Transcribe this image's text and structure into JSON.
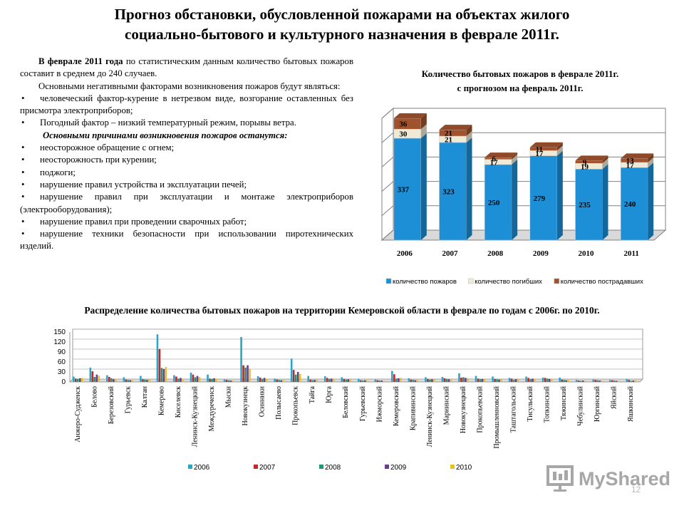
{
  "title": {
    "line1": "Прогноз обстановки, обусловленной пожарами на объектах жилого",
    "line2": "социально-бытового и культурного назначения в феврале 2011г."
  },
  "text": {
    "p1_bold": "В феврале 2011 года",
    "p1_rest": " по статистическим данным количество бытовых пожаров составит в среднем до 240 случаев.",
    "p2": "Основными негативными факторами возникновения пожаров будут являться:",
    "bullet_mark": "•",
    "factors": [
      "человеческий фактор-курение в нетрезвом виде, возгорание оставленных без присмотра электроприборов;",
      "Погодный фактор – низкий температурный режим, порывы ветра."
    ],
    "causes_heading": "Основными причинами возникновения пожаров останутся:",
    "causes": [
      "неосторожное обращение с огнем;",
      "неосторожность при курении;",
      "поджоги;",
      "нарушение правил устройства и эксплуатации печей;",
      "нарушение правил при эксплуатации и монтаже электроприборов (электрооборудования);",
      "нарушение правил при проведении сварочных работ;",
      "нарушение техники безопасности при использовании пиротехнических изделий."
    ]
  },
  "chart_data": [
    {
      "type": "bar",
      "stacked": true,
      "title_line1": "Количество бытовых пожаров в феврале 2011г.",
      "title_line2": "с прогнозом на февраль 2011г.",
      "categories": [
        "2006",
        "2007",
        "2008",
        "2009",
        "2010",
        "2011"
      ],
      "series": [
        {
          "name": "количество пожаров",
          "values": [
            337,
            323,
            250,
            279,
            235,
            240
          ],
          "color": "#1c8fd6"
        },
        {
          "name": "количество погибших",
          "values": [
            30,
            21,
            17,
            17,
            19,
            17
          ],
          "color": "#efe9d5"
        },
        {
          "name": "количество пострадавших",
          "values": [
            36,
            21,
            6,
            11,
            9,
            13
          ],
          "color": "#a0522d"
        }
      ],
      "legend_position": "bottom",
      "grid": true
    },
    {
      "type": "bar",
      "title": "Распределение количества бытовых пожаров на территории Кемеровской области в феврале по годам с 2006г. по 2010г.",
      "ylim": [
        0,
        150
      ],
      "yticks": [
        0,
        30,
        60,
        90,
        120,
        150
      ],
      "categories": [
        "Анжеро-Судженск",
        "Белово",
        "Березовский",
        "Гурьевск",
        "Калтан",
        "Кемерово",
        "Киселевск",
        "Ленинск-Кузнецкий",
        "Междуреченск",
        "Мыски",
        "Новокузнецк",
        "Осинники",
        "Полысаево",
        "Прокопьевск",
        "Тайга",
        "Юрга",
        "Беловский",
        "Гурьевский",
        "Ижморский",
        "Кемеровский",
        "Крапивинский",
        "Ленинск-Кузнецкий",
        "Мариинский",
        "Новокузнецкий",
        "Прокопьевский",
        "Промышленновский",
        "Таштагольский",
        "Тисульский",
        "Топкинский",
        "Тяжинский",
        "Чебулинский",
        "Юргинский",
        "Яйский",
        "Яшкинский"
      ],
      "series": [
        {
          "name": "2006",
          "color": "#2aa6c8",
          "values": [
            16,
            43,
            20,
            14,
            18,
            143,
            20,
            28,
            22,
            7,
            135,
            17,
            10,
            70,
            18,
            17,
            14,
            9,
            7,
            33,
            11,
            14,
            15,
            26,
            18,
            16,
            12,
            16,
            13,
            13,
            6,
            7,
            6,
            9
          ]
        },
        {
          "name": "2007",
          "color": "#c0282a",
          "values": [
            10,
            32,
            15,
            7,
            8,
            99,
            16,
            22,
            10,
            6,
            50,
            13,
            7,
            36,
            7,
            12,
            9,
            5,
            5,
            23,
            7,
            9,
            11,
            13,
            10,
            9,
            10,
            12,
            12,
            7,
            4,
            6,
            5,
            6
          ]
        },
        {
          "name": "2008",
          "color": "#1a9b78",
          "values": [
            9,
            15,
            11,
            6,
            7,
            42,
            10,
            14,
            9,
            5,
            43,
            9,
            6,
            22,
            5,
            9,
            7,
            4,
            4,
            10,
            6,
            7,
            9,
            14,
            8,
            8,
            6,
            8,
            10,
            6,
            3,
            5,
            4,
            3
          ]
        },
        {
          "name": "2009",
          "color": "#6a3d8f",
          "values": [
            11,
            22,
            8,
            5,
            6,
            39,
            12,
            18,
            11,
            4,
            50,
            12,
            5,
            30,
            6,
            10,
            8,
            5,
            4,
            11,
            5,
            8,
            8,
            12,
            9,
            7,
            8,
            10,
            9,
            5,
            4,
            4,
            3,
            4
          ]
        },
        {
          "name": "2010",
          "color": "#e8c21e",
          "values": [
            12,
            19,
            9,
            5,
            7,
            45,
            9,
            15,
            8,
            4,
            40,
            10,
            6,
            24,
            6,
            8,
            7,
            4,
            3,
            12,
            5,
            7,
            7,
            11,
            8,
            7,
            7,
            9,
            8,
            6,
            3,
            4,
            3,
            5
          ]
        }
      ],
      "legend_position": "bottom",
      "grid": true
    }
  ],
  "logo": {
    "text": "MyShared"
  },
  "page_number": "12"
}
